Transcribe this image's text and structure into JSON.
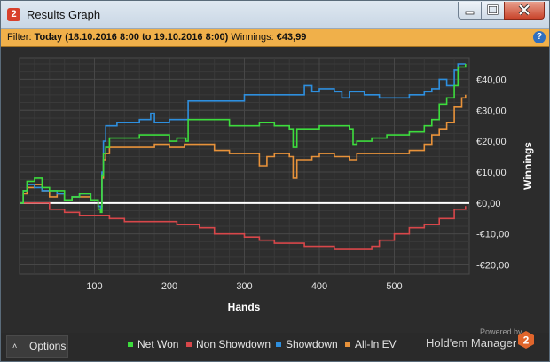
{
  "window": {
    "title": "Results Graph",
    "app_icon_text": "2"
  },
  "filter": {
    "prefix": "Filter:",
    "value": "Today (18.10.2016 8:00 to 19.10.2016 8:00)",
    "winnings_label": "Winnings:",
    "winnings_value": "€43,99",
    "help_text": "?"
  },
  "bottom": {
    "options_label": "Options",
    "powered_by": "Powered by",
    "brand": "Hold'em Manager",
    "brand_logo_text": "2"
  },
  "colors": {
    "net_won": "#3ddc3d",
    "non_showdown": "#d8474a",
    "showdown": "#2e8fde",
    "all_in_ev": "#e8923a",
    "zero_line": "#ffffff"
  },
  "chart_data": {
    "type": "line",
    "xlabel": "Hands",
    "ylabel": "Winnings",
    "xlim": [
      0,
      600
    ],
    "ylim": [
      -23,
      47
    ],
    "x_ticks": [
      100,
      200,
      300,
      400,
      500
    ],
    "y_ticks": [
      {
        "value": 40,
        "label": "€40,00"
      },
      {
        "value": 30,
        "label": "€30,00"
      },
      {
        "value": 20,
        "label": "€20,00"
      },
      {
        "value": 10,
        "label": "€10,00"
      },
      {
        "value": 0,
        "label": "€0,00"
      },
      {
        "value": -10,
        "label": "-€10,00"
      },
      {
        "value": -20,
        "label": "-€20,00"
      }
    ],
    "grid": true,
    "legend_position": "bottom",
    "series": [
      {
        "name": "Net Won",
        "color": "#3ddc3d",
        "points": [
          [
            0,
            0
          ],
          [
            5,
            4
          ],
          [
            10,
            7
          ],
          [
            20,
            8
          ],
          [
            30,
            5
          ],
          [
            40,
            4
          ],
          [
            50,
            4
          ],
          [
            60,
            1
          ],
          [
            70,
            2
          ],
          [
            80,
            3
          ],
          [
            95,
            1
          ],
          [
            105,
            -2
          ],
          [
            108,
            -3
          ],
          [
            110,
            9
          ],
          [
            112,
            16
          ],
          [
            115,
            18
          ],
          [
            120,
            21
          ],
          [
            140,
            21
          ],
          [
            160,
            22
          ],
          [
            180,
            22
          ],
          [
            200,
            20
          ],
          [
            210,
            21
          ],
          [
            222,
            20
          ],
          [
            225,
            27
          ],
          [
            240,
            27
          ],
          [
            260,
            27
          ],
          [
            280,
            25
          ],
          [
            300,
            25
          ],
          [
            320,
            26
          ],
          [
            340,
            25
          ],
          [
            360,
            24
          ],
          [
            365,
            18
          ],
          [
            370,
            24
          ],
          [
            390,
            24
          ],
          [
            400,
            25
          ],
          [
            420,
            25
          ],
          [
            440,
            24
          ],
          [
            445,
            19
          ],
          [
            450,
            20
          ],
          [
            470,
            21
          ],
          [
            480,
            21
          ],
          [
            490,
            22
          ],
          [
            520,
            23
          ],
          [
            540,
            25
          ],
          [
            550,
            27
          ],
          [
            560,
            32
          ],
          [
            570,
            34
          ],
          [
            580,
            38
          ],
          [
            585,
            44
          ],
          [
            595,
            45
          ]
        ]
      },
      {
        "name": "Non Showdown",
        "color": "#d8474a",
        "points": [
          [
            0,
            0
          ],
          [
            40,
            -2
          ],
          [
            60,
            -3
          ],
          [
            80,
            -4
          ],
          [
            100,
            -4
          ],
          [
            120,
            -5
          ],
          [
            140,
            -6
          ],
          [
            160,
            -6
          ],
          [
            180,
            -6
          ],
          [
            200,
            -6
          ],
          [
            210,
            -7
          ],
          [
            240,
            -8
          ],
          [
            260,
            -10
          ],
          [
            280,
            -10
          ],
          [
            300,
            -11
          ],
          [
            320,
            -12
          ],
          [
            340,
            -13
          ],
          [
            360,
            -13
          ],
          [
            380,
            -14
          ],
          [
            400,
            -14
          ],
          [
            420,
            -15
          ],
          [
            440,
            -15
          ],
          [
            460,
            -15
          ],
          [
            470,
            -14
          ],
          [
            480,
            -12
          ],
          [
            500,
            -10
          ],
          [
            520,
            -8
          ],
          [
            540,
            -7
          ],
          [
            560,
            -5
          ],
          [
            580,
            -2
          ],
          [
            595,
            -1
          ]
        ]
      },
      {
        "name": "Showdown",
        "color": "#2e8fde",
        "points": [
          [
            0,
            0
          ],
          [
            5,
            4
          ],
          [
            10,
            6
          ],
          [
            20,
            5
          ],
          [
            30,
            4
          ],
          [
            40,
            4
          ],
          [
            50,
            3
          ],
          [
            60,
            1
          ],
          [
            70,
            2
          ],
          [
            80,
            3
          ],
          [
            95,
            1
          ],
          [
            105,
            -1
          ],
          [
            108,
            -2
          ],
          [
            110,
            10
          ],
          [
            112,
            20
          ],
          [
            115,
            25
          ],
          [
            130,
            26
          ],
          [
            140,
            26
          ],
          [
            160,
            27
          ],
          [
            175,
            29
          ],
          [
            180,
            26
          ],
          [
            200,
            27
          ],
          [
            220,
            27
          ],
          [
            225,
            33
          ],
          [
            240,
            33
          ],
          [
            260,
            33
          ],
          [
            280,
            33
          ],
          [
            300,
            35
          ],
          [
            320,
            35
          ],
          [
            340,
            35
          ],
          [
            360,
            35
          ],
          [
            380,
            38
          ],
          [
            390,
            36
          ],
          [
            400,
            37
          ],
          [
            420,
            36
          ],
          [
            430,
            34
          ],
          [
            440,
            36
          ],
          [
            460,
            35
          ],
          [
            480,
            34
          ],
          [
            500,
            34
          ],
          [
            520,
            35
          ],
          [
            540,
            36
          ],
          [
            550,
            37
          ],
          [
            560,
            40
          ],
          [
            570,
            38
          ],
          [
            580,
            43
          ],
          [
            585,
            45
          ],
          [
            595,
            45
          ]
        ]
      },
      {
        "name": "All-In EV",
        "color": "#e8923a",
        "points": [
          [
            0,
            0
          ],
          [
            5,
            3
          ],
          [
            10,
            5
          ],
          [
            20,
            6
          ],
          [
            30,
            4
          ],
          [
            40,
            2
          ],
          [
            50,
            3
          ],
          [
            60,
            1
          ],
          [
            70,
            2
          ],
          [
            80,
            2
          ],
          [
            95,
            1
          ],
          [
            105,
            -1
          ],
          [
            108,
            -1
          ],
          [
            110,
            8
          ],
          [
            112,
            14
          ],
          [
            115,
            16
          ],
          [
            120,
            18
          ],
          [
            140,
            18
          ],
          [
            160,
            18
          ],
          [
            180,
            19
          ],
          [
            200,
            18
          ],
          [
            220,
            19
          ],
          [
            240,
            19
          ],
          [
            260,
            17
          ],
          [
            280,
            16
          ],
          [
            300,
            16
          ],
          [
            320,
            12
          ],
          [
            330,
            15
          ],
          [
            340,
            16
          ],
          [
            360,
            15
          ],
          [
            365,
            8
          ],
          [
            370,
            14
          ],
          [
            390,
            15
          ],
          [
            400,
            16
          ],
          [
            420,
            15
          ],
          [
            440,
            14
          ],
          [
            450,
            16
          ],
          [
            470,
            16
          ],
          [
            480,
            16
          ],
          [
            500,
            16
          ],
          [
            520,
            17
          ],
          [
            540,
            19
          ],
          [
            550,
            22
          ],
          [
            560,
            24
          ],
          [
            570,
            26
          ],
          [
            580,
            31
          ],
          [
            590,
            34
          ],
          [
            595,
            35
          ]
        ]
      }
    ]
  }
}
